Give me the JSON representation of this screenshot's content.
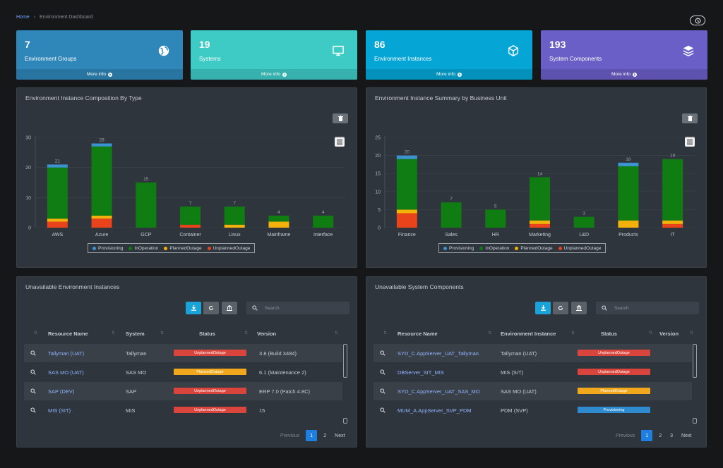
{
  "breadcrumb": {
    "home": "Home",
    "separator": "›",
    "current": "Environment Dashboard"
  },
  "stat_cards": [
    {
      "value": "7",
      "label": "Environment Groups",
      "more": "More info",
      "color": "#2f86b8",
      "icon": "globe-icon"
    },
    {
      "value": "19",
      "label": "Systems",
      "more": "More info",
      "color": "#3ecac5",
      "icon": "monitor-icon"
    },
    {
      "value": "86",
      "label": "Environment Instances",
      "more": "More info",
      "color": "#05a6d6",
      "icon": "cube-icon"
    },
    {
      "value": "193",
      "label": "System Components",
      "more": "More info",
      "color": "#6a5fc6",
      "icon": "layers-icon"
    }
  ],
  "charts": {
    "composition": {
      "title": "Environment Instance Composition By Type"
    },
    "summary": {
      "title": "Environment Instance Summary by Business Unit"
    }
  },
  "chart_data": [
    {
      "type": "bar",
      "title": "Environment Instance Composition By Type",
      "stacked": true,
      "categories": [
        "AWS",
        "Azure",
        "GCP",
        "Container",
        "Linux",
        "Mainframe",
        "Interface"
      ],
      "totals": [
        21,
        28,
        15,
        7,
        7,
        4,
        4
      ],
      "ylim": [
        0,
        30
      ],
      "yticks": [
        0,
        10,
        20,
        30
      ],
      "series": [
        {
          "name": "UnplannedOutage",
          "color": "#e8431b",
          "values": [
            2,
            3,
            0,
            1,
            0,
            0,
            0
          ]
        },
        {
          "name": "PlannedOutage",
          "color": "#f3b10c",
          "values": [
            1,
            1,
            0,
            0,
            1,
            2,
            0
          ]
        },
        {
          "name": "InOperation",
          "color": "#0f7d12",
          "values": [
            17,
            23,
            15,
            6,
            6,
            2,
            4
          ]
        },
        {
          "name": "Provisioning",
          "color": "#3b93d0",
          "values": [
            1,
            1,
            0,
            0,
            0,
            0,
            0
          ]
        }
      ],
      "legend_order": [
        "Provisioning",
        "InOperation",
        "PlannedOutage",
        "UnplannedOutage"
      ],
      "legend": "bottom"
    },
    {
      "type": "bar",
      "title": "Environment Instance Summary by Business Unit",
      "stacked": true,
      "categories": [
        "Finance",
        "Sales",
        "HR",
        "Marketing",
        "L&D",
        "Products",
        "IT"
      ],
      "totals": [
        20,
        7,
        5,
        14,
        3,
        18,
        19
      ],
      "ylim": [
        0,
        25
      ],
      "yticks": [
        0,
        5,
        10,
        15,
        20,
        25
      ],
      "series": [
        {
          "name": "UnplannedOutage",
          "color": "#e8431b",
          "values": [
            4,
            0,
            0,
            1,
            0,
            0,
            1
          ]
        },
        {
          "name": "PlannedOutage",
          "color": "#f3b10c",
          "values": [
            1,
            0,
            0,
            1,
            0,
            2,
            1
          ]
        },
        {
          "name": "InOperation",
          "color": "#0f7d12",
          "values": [
            14,
            7,
            5,
            12,
            3,
            15,
            17
          ]
        },
        {
          "name": "Provisioning",
          "color": "#3b93d0",
          "values": [
            1,
            0,
            0,
            0,
            0,
            1,
            0
          ]
        }
      ],
      "legend_order": [
        "Provisioning",
        "InOperation",
        "PlannedOutage",
        "UnplannedOutage"
      ],
      "legend": "bottom"
    }
  ],
  "tables": {
    "env": {
      "title": "Unavailable Environment Instances",
      "search_placeholder": "Search",
      "headers": [
        "Resource Name",
        "System",
        "Status",
        "Version"
      ],
      "rows": [
        {
          "name": "Tallyman (UAT)",
          "system": "Tallyman",
          "status": "UnplannedOutage",
          "version": "3.8 (Build 3484)"
        },
        {
          "name": "SAS MO (UAT)",
          "system": "SAS MO",
          "status": "PlannedOutage",
          "version": "6.1 (Maintenance 2)"
        },
        {
          "name": "SAP (DEV)",
          "system": "SAP",
          "status": "UnplannedOutage",
          "version": "ERP 7.0 (Patch 4.8C)"
        },
        {
          "name": "MIS (SIT)",
          "system": "MIS",
          "status": "UnplannedOutage",
          "version": "15"
        }
      ],
      "pager": {
        "prev": "Previous",
        "pages": [
          "1",
          "2"
        ],
        "active": "1",
        "next": "Next"
      }
    },
    "sys": {
      "title": "Unavailable System Components",
      "search_placeholder": "Search",
      "headers": [
        "Resource Name",
        "Environment Instance",
        "Status",
        "Version"
      ],
      "rows": [
        {
          "name": "SYD_C.AppServer_UAT_Tallyman",
          "env": "Tallyman (UAT)",
          "status": "UnplannedOutage"
        },
        {
          "name": "DBServer_SIT_MIS",
          "env": "MIS (SIT)",
          "status": "UnplannedOutage"
        },
        {
          "name": "SYD_C.AppServer_UAT_SAS_MO",
          "env": "SAS MO (UAT)",
          "status": "PlannedOutage"
        },
        {
          "name": "MUM_A.AppServer_SVP_PDM",
          "env": "PDM (SVP)",
          "status": "Provisioning"
        }
      ],
      "pager": {
        "prev": "Previous",
        "pages": [
          "1",
          "2",
          "3"
        ],
        "active": "1",
        "next": "Next"
      }
    }
  },
  "status_colors": {
    "UnplannedOutage": "#d9453c",
    "PlannedOutage": "#f2a81d",
    "Provisioning": "#2f8bd0"
  }
}
